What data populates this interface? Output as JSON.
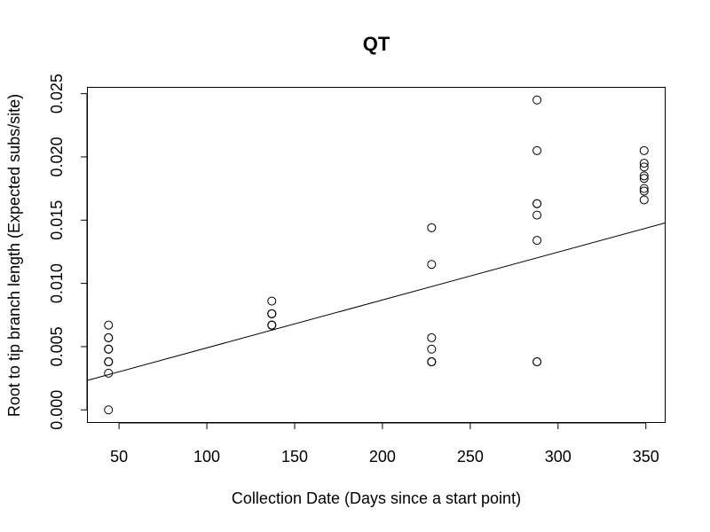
{
  "chart_data": {
    "type": "scatter",
    "title": "QT",
    "xlabel": "Collection Date (Days since a start point)",
    "ylabel": "Root to tip branch length (Expected subs/site)",
    "xlim": [
      32,
      361
    ],
    "ylim": [
      -0.001,
      0.0255
    ],
    "xticks": [
      50,
      100,
      150,
      200,
      250,
      300,
      350
    ],
    "xtick_labels": [
      "50",
      "100",
      "150",
      "200",
      "250",
      "300",
      "350"
    ],
    "yticks": [
      0.0,
      0.005,
      0.01,
      0.015,
      0.02,
      0.025
    ],
    "ytick_labels": [
      "0.000",
      "0.005",
      "0.010",
      "0.015",
      "0.020",
      "0.025"
    ],
    "grid": false,
    "legend": "none",
    "points": [
      {
        "x": 44,
        "y": 0.0067
      },
      {
        "x": 44,
        "y": 0.0057
      },
      {
        "x": 44,
        "y": 0.0057
      },
      {
        "x": 44,
        "y": 0.0048
      },
      {
        "x": 44,
        "y": 0.0048
      },
      {
        "x": 44,
        "y": 0.0048
      },
      {
        "x": 44,
        "y": 0.0038
      },
      {
        "x": 44,
        "y": 0.0038
      },
      {
        "x": 44,
        "y": 0.0038
      },
      {
        "x": 44,
        "y": 0.0029
      },
      {
        "x": 44,
        "y": 0.0
      },
      {
        "x": 137,
        "y": 0.0086
      },
      {
        "x": 137,
        "y": 0.0076
      },
      {
        "x": 137,
        "y": 0.0076
      },
      {
        "x": 137,
        "y": 0.0076
      },
      {
        "x": 137,
        "y": 0.0067
      },
      {
        "x": 137,
        "y": 0.0067
      },
      {
        "x": 137,
        "y": 0.0067
      },
      {
        "x": 228,
        "y": 0.0144
      },
      {
        "x": 228,
        "y": 0.0115
      },
      {
        "x": 228,
        "y": 0.0057
      },
      {
        "x": 228,
        "y": 0.0048
      },
      {
        "x": 228,
        "y": 0.0038
      },
      {
        "x": 228,
        "y": 0.0038
      },
      {
        "x": 228,
        "y": 0.0038
      },
      {
        "x": 288,
        "y": 0.0245
      },
      {
        "x": 288,
        "y": 0.0205
      },
      {
        "x": 288,
        "y": 0.0163
      },
      {
        "x": 288,
        "y": 0.0163
      },
      {
        "x": 288,
        "y": 0.0154
      },
      {
        "x": 288,
        "y": 0.0134
      },
      {
        "x": 288,
        "y": 0.0038
      },
      {
        "x": 288,
        "y": 0.0038
      },
      {
        "x": 349,
        "y": 0.0205
      },
      {
        "x": 349,
        "y": 0.0195
      },
      {
        "x": 349,
        "y": 0.0192
      },
      {
        "x": 349,
        "y": 0.0185
      },
      {
        "x": 349,
        "y": 0.0183
      },
      {
        "x": 349,
        "y": 0.0175
      },
      {
        "x": 349,
        "y": 0.0173
      },
      {
        "x": 349,
        "y": 0.0166
      }
    ],
    "fit_line": {
      "x": [
        32,
        361
      ],
      "y": [
        0.00233,
        0.01478
      ]
    }
  }
}
